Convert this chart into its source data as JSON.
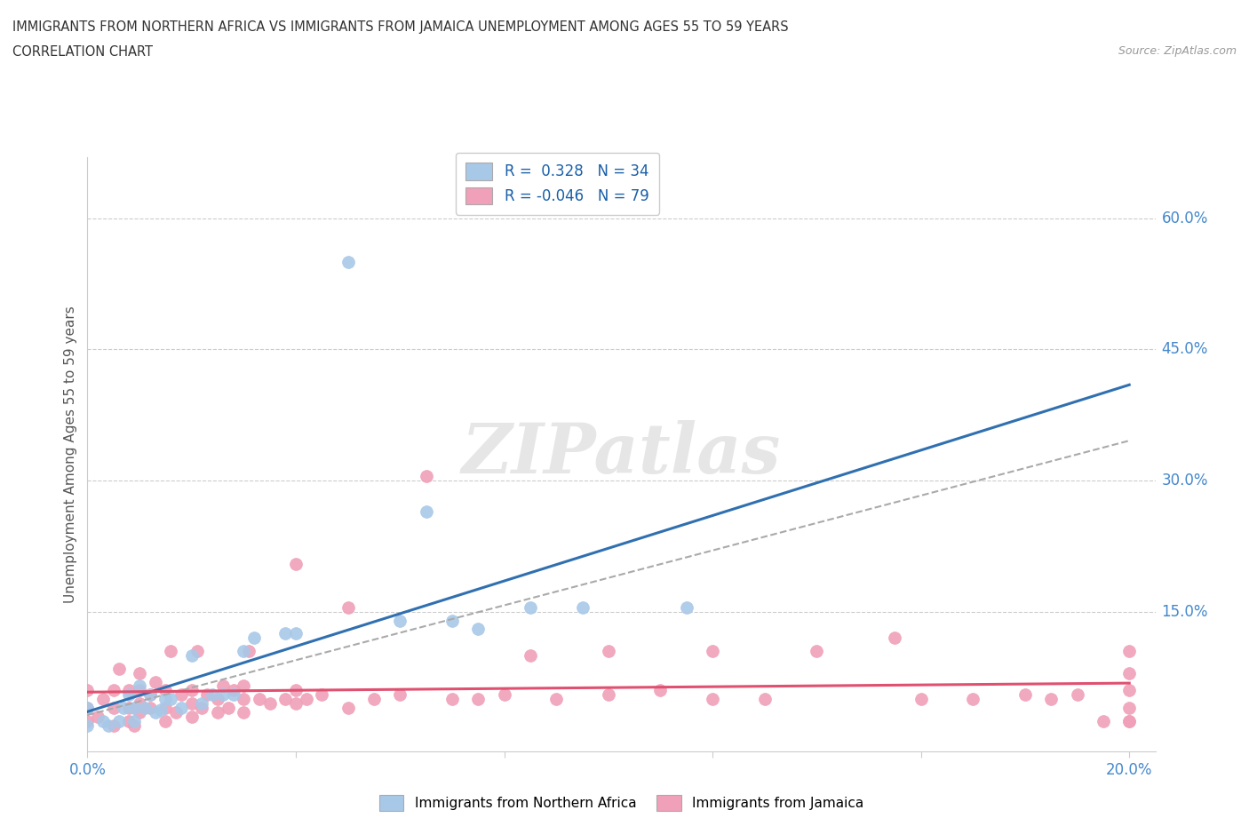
{
  "title_line1": "IMMIGRANTS FROM NORTHERN AFRICA VS IMMIGRANTS FROM JAMAICA UNEMPLOYMENT AMONG AGES 55 TO 59 YEARS",
  "title_line2": "CORRELATION CHART",
  "source_text": "Source: ZipAtlas.com",
  "ylabel": "Unemployment Among Ages 55 to 59 years",
  "xlim": [
    0.0,
    0.205
  ],
  "ylim": [
    -0.01,
    0.67
  ],
  "background_color": "#ffffff",
  "grid_color": "#cccccc",
  "watermark_text": "ZIPatlas",
  "blue_color": "#a8c8e8",
  "pink_color": "#f0a0b8",
  "blue_line_color": "#3070b0",
  "pink_line_color": "#e05070",
  "grey_dash_color": "#aaaaaa",
  "tick_label_color": "#4488cc",
  "R_blue": 0.328,
  "N_blue": 34,
  "R_pink": -0.046,
  "N_pink": 79,
  "blue_scatter_x": [
    0.0,
    0.0,
    0.003,
    0.004,
    0.006,
    0.007,
    0.008,
    0.009,
    0.009,
    0.01,
    0.011,
    0.012,
    0.013,
    0.014,
    0.015,
    0.016,
    0.018,
    0.02,
    0.022,
    0.024,
    0.026,
    0.028,
    0.03,
    0.032,
    0.038,
    0.04,
    0.05,
    0.06,
    0.065,
    0.07,
    0.075,
    0.085,
    0.095,
    0.115
  ],
  "blue_scatter_y": [
    0.02,
    0.04,
    0.025,
    0.02,
    0.025,
    0.04,
    0.055,
    0.025,
    0.04,
    0.065,
    0.04,
    0.055,
    0.035,
    0.038,
    0.05,
    0.05,
    0.04,
    0.1,
    0.045,
    0.055,
    0.055,
    0.055,
    0.105,
    0.12,
    0.125,
    0.125,
    0.55,
    0.14,
    0.265,
    0.14,
    0.13,
    0.155,
    0.155,
    0.155
  ],
  "pink_scatter_x": [
    0.0,
    0.0,
    0.0,
    0.002,
    0.003,
    0.005,
    0.005,
    0.005,
    0.006,
    0.008,
    0.008,
    0.008,
    0.009,
    0.01,
    0.01,
    0.01,
    0.01,
    0.012,
    0.012,
    0.013,
    0.015,
    0.015,
    0.015,
    0.016,
    0.017,
    0.018,
    0.02,
    0.02,
    0.02,
    0.021,
    0.022,
    0.023,
    0.025,
    0.025,
    0.026,
    0.027,
    0.028,
    0.03,
    0.03,
    0.03,
    0.031,
    0.033,
    0.035,
    0.038,
    0.04,
    0.04,
    0.04,
    0.042,
    0.045,
    0.05,
    0.05,
    0.055,
    0.06,
    0.065,
    0.07,
    0.075,
    0.08,
    0.085,
    0.09,
    0.1,
    0.1,
    0.11,
    0.12,
    0.12,
    0.13,
    0.14,
    0.155,
    0.16,
    0.17,
    0.18,
    0.185,
    0.19,
    0.195,
    0.2,
    0.2,
    0.2,
    0.2,
    0.2,
    0.2
  ],
  "pink_scatter_y": [
    0.025,
    0.04,
    0.06,
    0.03,
    0.05,
    0.02,
    0.04,
    0.06,
    0.085,
    0.025,
    0.04,
    0.06,
    0.02,
    0.035,
    0.045,
    0.06,
    0.08,
    0.04,
    0.055,
    0.07,
    0.025,
    0.04,
    0.06,
    0.105,
    0.035,
    0.055,
    0.03,
    0.045,
    0.06,
    0.105,
    0.04,
    0.055,
    0.035,
    0.05,
    0.065,
    0.04,
    0.06,
    0.035,
    0.05,
    0.065,
    0.105,
    0.05,
    0.045,
    0.05,
    0.045,
    0.06,
    0.205,
    0.05,
    0.055,
    0.04,
    0.155,
    0.05,
    0.055,
    0.305,
    0.05,
    0.05,
    0.055,
    0.1,
    0.05,
    0.055,
    0.105,
    0.06,
    0.05,
    0.105,
    0.05,
    0.105,
    0.12,
    0.05,
    0.05,
    0.055,
    0.05,
    0.055,
    0.025,
    0.025,
    0.04,
    0.06,
    0.08,
    0.105,
    0.025
  ]
}
